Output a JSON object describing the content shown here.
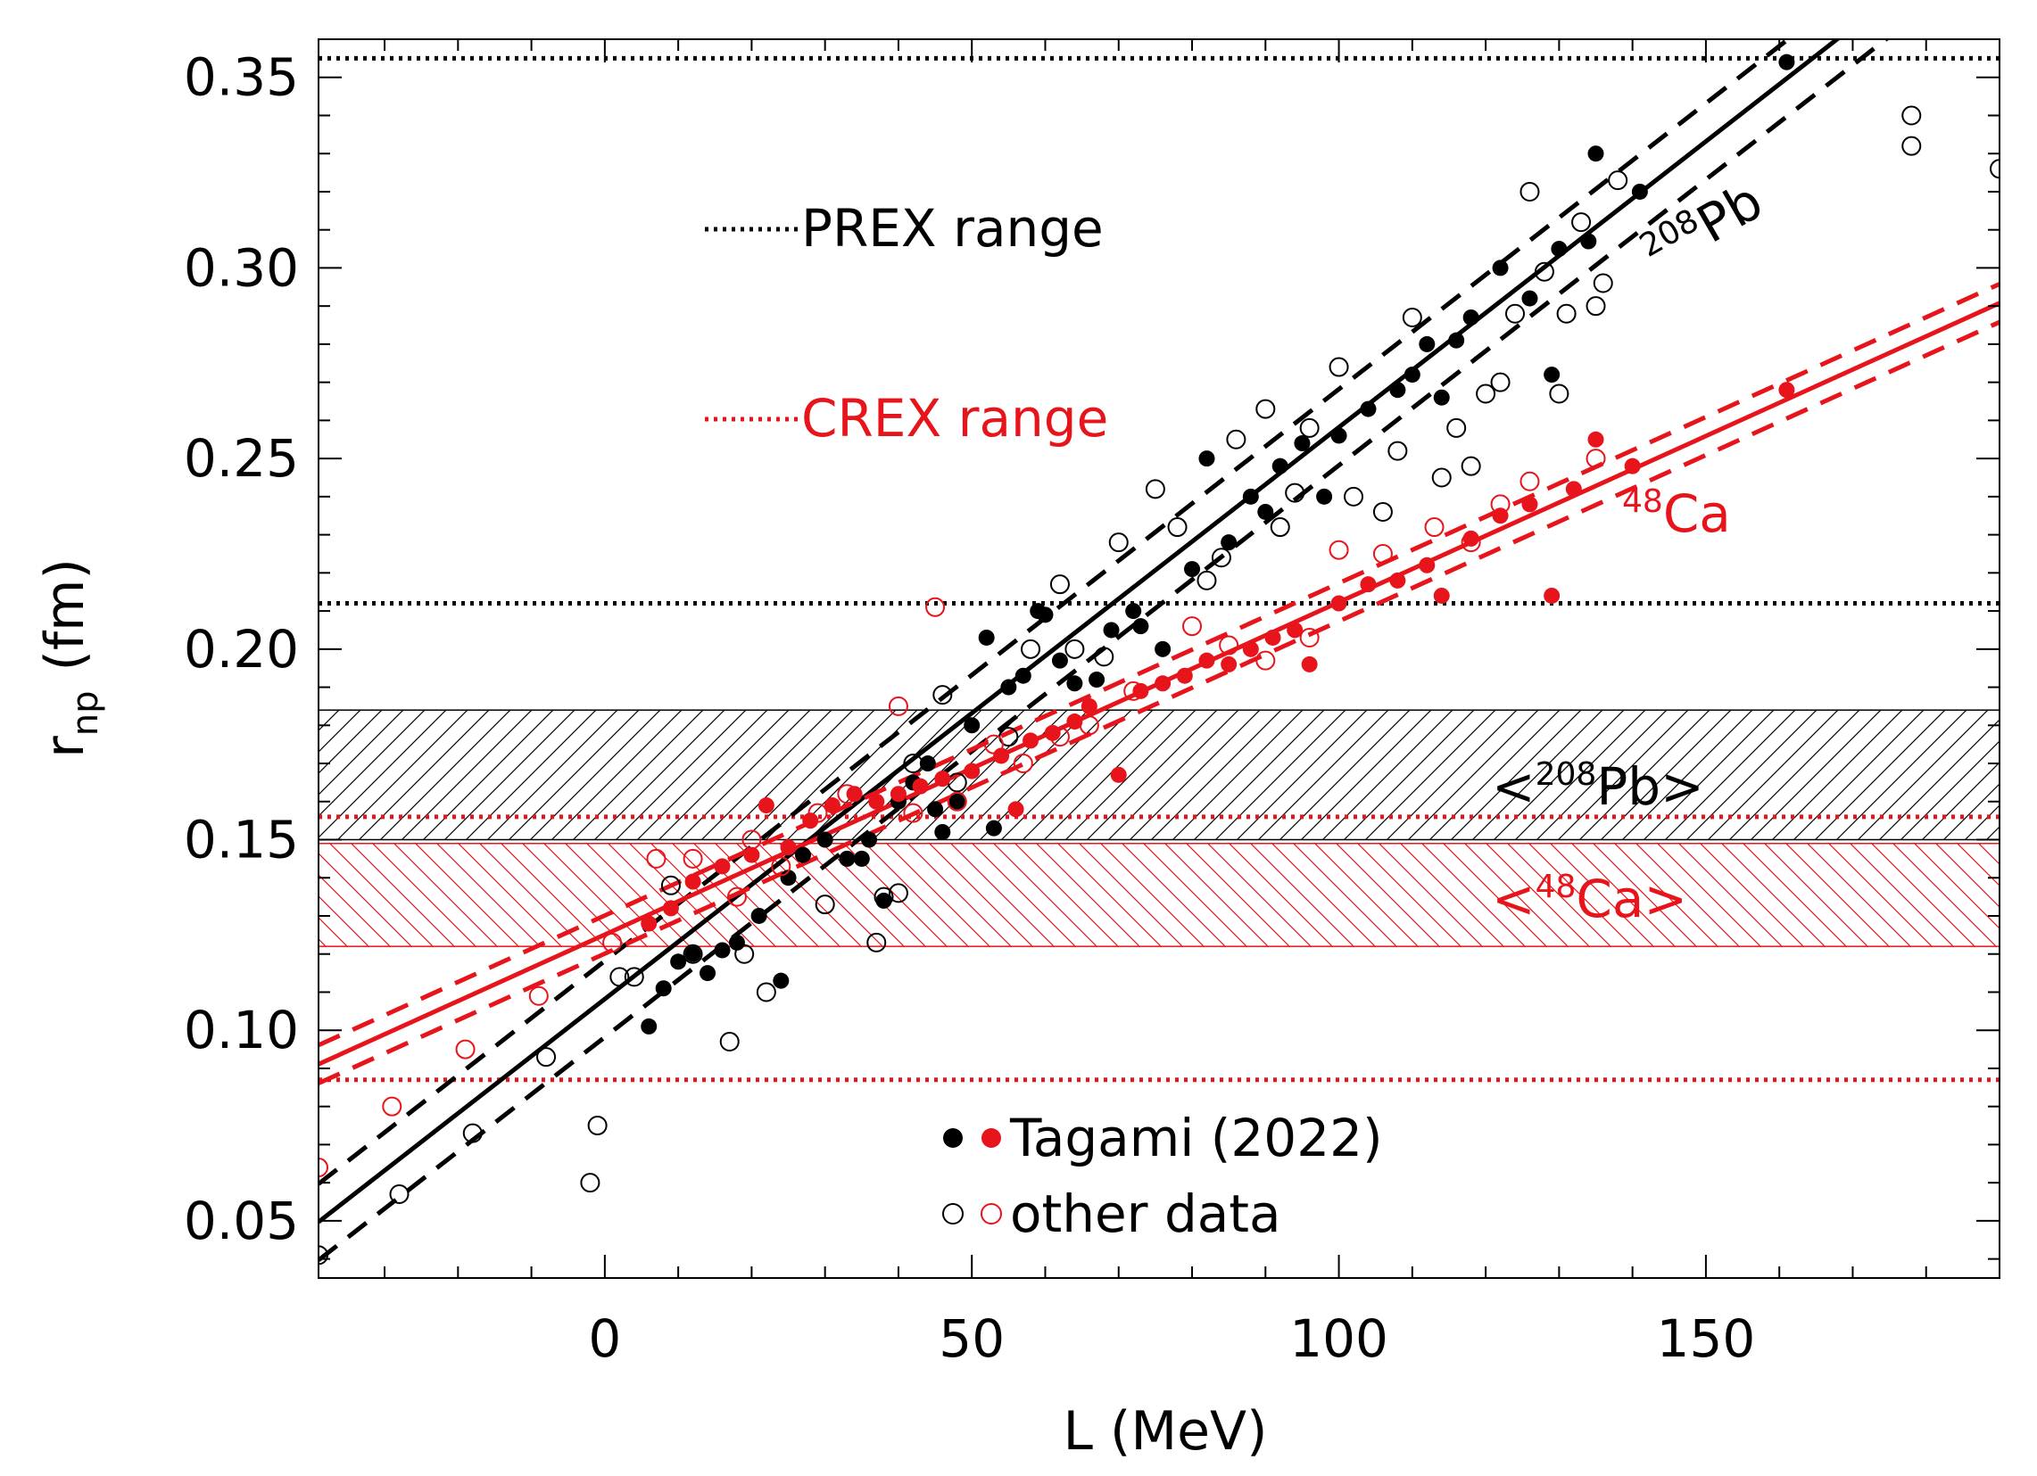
{
  "chart_data": {
    "type": "scatter",
    "xlabel": "L (MeV)",
    "ylabel_main": "r",
    "ylabel_sub": "np",
    "ylabel_unit": "(fm)",
    "xlim": [
      -39,
      190
    ],
    "ylim": [
      0.035,
      0.36
    ],
    "x_ticks": [
      0,
      50,
      100,
      150
    ],
    "x_tick_labels": [
      "0",
      "50",
      "100",
      "150"
    ],
    "y_ticks": [
      0.05,
      0.1,
      0.15,
      0.2,
      0.25,
      0.3,
      0.35
    ],
    "y_tick_labels": [
      "0.05",
      "0.10",
      "0.15",
      "0.20",
      "0.25",
      "0.30",
      "0.35"
    ],
    "colors": {
      "pb": "#000000",
      "ca": "#e8141b"
    },
    "prex_range": {
      "label": "PREX range",
      "lines": [
        0.212,
        0.355
      ],
      "color": "#000000"
    },
    "crex_range": {
      "label": "CREX range",
      "lines": [
        0.087,
        0.156
      ],
      "color": "#e8141b"
    },
    "bands": [
      {
        "label_pre": "<",
        "label_sup": "208",
        "label_main": "Pb",
        "label_post": ">",
        "range": [
          0.15,
          0.184
        ],
        "color": "#000000",
        "hatch": "forward"
      },
      {
        "label_pre": "<",
        "label_sup": "48",
        "label_main": "Ca",
        "label_post": ">",
        "range": [
          0.122,
          0.149
        ],
        "color": "#e8141b",
        "hatch": "backward"
      }
    ],
    "fits": [
      {
        "label_sup": "208",
        "label_main": "Pb",
        "color": "#000000",
        "slope": 0.0015,
        "intercept": 0.1082,
        "band_offset": 0.01
      },
      {
        "label_sup": "48",
        "label_main": "Ca",
        "color": "#e8141b",
        "slope": 0.000872,
        "intercept": 0.1251,
        "band_offset": 0.005
      }
    ],
    "legend": {
      "filled_label": "Tagami (2022)",
      "open_label": "other data"
    },
    "series": [
      {
        "name": "Tagami (2022)",
        "nucleus": "208Pb",
        "marker": "filled",
        "color": "#000000",
        "points": [
          [
            6,
            0.101
          ],
          [
            8,
            0.111
          ],
          [
            10,
            0.118
          ],
          [
            12,
            0.12
          ],
          [
            14,
            0.115
          ],
          [
            16,
            0.121
          ],
          [
            18,
            0.123
          ],
          [
            21,
            0.13
          ],
          [
            24,
            0.113
          ],
          [
            25,
            0.14
          ],
          [
            27,
            0.146
          ],
          [
            30,
            0.15
          ],
          [
            33,
            0.145
          ],
          [
            35,
            0.145
          ],
          [
            38,
            0.134
          ],
          [
            40,
            0.16
          ],
          [
            42,
            0.165
          ],
          [
            44,
            0.17
          ],
          [
            46,
            0.152
          ],
          [
            48,
            0.16
          ],
          [
            50,
            0.18
          ],
          [
            52,
            0.203
          ],
          [
            55,
            0.19
          ],
          [
            57,
            0.193
          ],
          [
            60,
            0.209
          ],
          [
            62,
            0.197
          ],
          [
            64,
            0.191
          ],
          [
            67,
            0.192
          ],
          [
            69,
            0.205
          ],
          [
            72,
            0.21
          ],
          [
            76,
            0.2
          ],
          [
            80,
            0.221
          ],
          [
            82,
            0.25
          ],
          [
            85,
            0.228
          ],
          [
            88,
            0.24
          ],
          [
            90,
            0.236
          ],
          [
            92,
            0.248
          ],
          [
            95,
            0.254
          ],
          [
            98,
            0.24
          ],
          [
            100,
            0.256
          ],
          [
            104,
            0.263
          ],
          [
            108,
            0.268
          ],
          [
            110,
            0.272
          ],
          [
            112,
            0.28
          ],
          [
            114,
            0.266
          ],
          [
            116,
            0.281
          ],
          [
            118,
            0.287
          ],
          [
            122,
            0.3
          ],
          [
            126,
            0.292
          ],
          [
            129,
            0.272
          ],
          [
            130,
            0.305
          ],
          [
            134,
            0.307
          ],
          [
            135,
            0.33
          ],
          [
            141,
            0.32
          ],
          [
            161,
            0.354
          ],
          [
            53,
            0.153
          ],
          [
            45,
            0.158
          ],
          [
            36,
            0.15
          ],
          [
            59,
            0.21
          ],
          [
            73,
            0.206
          ]
        ]
      },
      {
        "name": "other data",
        "nucleus": "208Pb",
        "marker": "open",
        "color": "#000000",
        "points": [
          [
            -39,
            0.041
          ],
          [
            -28,
            0.057
          ],
          [
            -18,
            0.073
          ],
          [
            -8,
            0.093
          ],
          [
            -2,
            0.06
          ],
          [
            -1,
            0.075
          ],
          [
            2,
            0.114
          ],
          [
            4,
            0.114
          ],
          [
            9,
            0.138
          ],
          [
            12,
            0.12
          ],
          [
            17,
            0.097
          ],
          [
            19,
            0.12
          ],
          [
            22,
            0.11
          ],
          [
            30,
            0.133
          ],
          [
            37,
            0.123
          ],
          [
            38,
            0.135
          ],
          [
            40,
            0.136
          ],
          [
            42,
            0.17
          ],
          [
            46,
            0.188
          ],
          [
            48,
            0.165
          ],
          [
            55,
            0.177
          ],
          [
            58,
            0.2
          ],
          [
            62,
            0.217
          ],
          [
            64,
            0.2
          ],
          [
            68,
            0.198
          ],
          [
            70,
            0.228
          ],
          [
            75,
            0.242
          ],
          [
            78,
            0.232
          ],
          [
            82,
            0.218
          ],
          [
            84,
            0.224
          ],
          [
            86,
            0.255
          ],
          [
            90,
            0.263
          ],
          [
            92,
            0.232
          ],
          [
            94,
            0.241
          ],
          [
            96,
            0.258
          ],
          [
            100,
            0.274
          ],
          [
            102,
            0.24
          ],
          [
            106,
            0.236
          ],
          [
            108,
            0.252
          ],
          [
            110,
            0.287
          ],
          [
            114,
            0.245
          ],
          [
            116,
            0.258
          ],
          [
            118,
            0.248
          ],
          [
            120,
            0.267
          ],
          [
            122,
            0.27
          ],
          [
            124,
            0.288
          ],
          [
            126,
            0.32
          ],
          [
            128,
            0.299
          ],
          [
            130,
            0.267
          ],
          [
            131,
            0.288
          ],
          [
            133,
            0.312
          ],
          [
            135,
            0.29
          ],
          [
            136,
            0.296
          ],
          [
            138,
            0.323
          ],
          [
            178,
            0.34
          ],
          [
            178,
            0.332
          ],
          [
            190,
            0.326
          ]
        ]
      },
      {
        "name": "Tagami (2022)",
        "nucleus": "48Ca",
        "marker": "filled",
        "color": "#e8141b",
        "points": [
          [
            6,
            0.128
          ],
          [
            9,
            0.132
          ],
          [
            12,
            0.139
          ],
          [
            16,
            0.143
          ],
          [
            20,
            0.146
          ],
          [
            22,
            0.159
          ],
          [
            25,
            0.148
          ],
          [
            28,
            0.155
          ],
          [
            31,
            0.159
          ],
          [
            34,
            0.162
          ],
          [
            37,
            0.16
          ],
          [
            40,
            0.162
          ],
          [
            43,
            0.164
          ],
          [
            46,
            0.166
          ],
          [
            50,
            0.168
          ],
          [
            54,
            0.172
          ],
          [
            56,
            0.158
          ],
          [
            58,
            0.176
          ],
          [
            61,
            0.178
          ],
          [
            64,
            0.181
          ],
          [
            66,
            0.185
          ],
          [
            70,
            0.167
          ],
          [
            73,
            0.189
          ],
          [
            76,
            0.191
          ],
          [
            79,
            0.193
          ],
          [
            82,
            0.197
          ],
          [
            85,
            0.196
          ],
          [
            88,
            0.2
          ],
          [
            91,
            0.203
          ],
          [
            94,
            0.205
          ],
          [
            96,
            0.196
          ],
          [
            100,
            0.212
          ],
          [
            104,
            0.217
          ],
          [
            108,
            0.218
          ],
          [
            112,
            0.222
          ],
          [
            114,
            0.214
          ],
          [
            118,
            0.229
          ],
          [
            122,
            0.235
          ],
          [
            126,
            0.238
          ],
          [
            129,
            0.214
          ],
          [
            132,
            0.242
          ],
          [
            135,
            0.255
          ],
          [
            140,
            0.248
          ],
          [
            161,
            0.268
          ]
        ]
      },
      {
        "name": "other data",
        "nucleus": "48Ca",
        "marker": "open",
        "color": "#e8141b",
        "points": [
          [
            -39,
            0.064
          ],
          [
            -29,
            0.08
          ],
          [
            -19,
            0.095
          ],
          [
            -9,
            0.109
          ],
          [
            1,
            0.123
          ],
          [
            7,
            0.145
          ],
          [
            12,
            0.145
          ],
          [
            18,
            0.135
          ],
          [
            20,
            0.15
          ],
          [
            24,
            0.143
          ],
          [
            29,
            0.157
          ],
          [
            33,
            0.162
          ],
          [
            40,
            0.185
          ],
          [
            42,
            0.157
          ],
          [
            45,
            0.211
          ],
          [
            48,
            0.16
          ],
          [
            53,
            0.175
          ],
          [
            57,
            0.17
          ],
          [
            62,
            0.177
          ],
          [
            66,
            0.18
          ],
          [
            72,
            0.189
          ],
          [
            80,
            0.206
          ],
          [
            85,
            0.201
          ],
          [
            90,
            0.197
          ],
          [
            96,
            0.203
          ],
          [
            100,
            0.226
          ],
          [
            106,
            0.225
          ],
          [
            113,
            0.232
          ],
          [
            118,
            0.228
          ],
          [
            122,
            0.238
          ],
          [
            126,
            0.244
          ],
          [
            135,
            0.25
          ]
        ]
      }
    ]
  }
}
